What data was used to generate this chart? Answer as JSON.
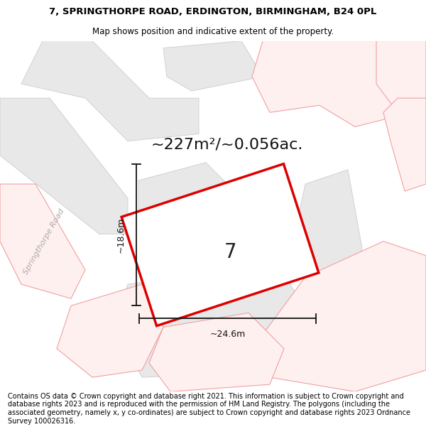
{
  "title_line1": "7, SPRINGTHORPE ROAD, ERDINGTON, BIRMINGHAM, B24 0PL",
  "title_line2": "Map shows position and indicative extent of the property.",
  "area_text": "~227m²/~0.056ac.",
  "property_number": "7",
  "dim_height": "~18.6m",
  "dim_width": "~24.6m",
  "road_label": "Springthorpe Road",
  "footer_text": "Contains OS data © Crown copyright and database right 2021. This information is subject to Crown copyright and database rights 2023 and is reproduced with the permission of HM Land Registry. The polygons (including the associated geometry, namely x, y co-ordinates) are subject to Crown copyright and database rights 2023 Ordnance Survey 100026316.",
  "map_bg": "#ffffff",
  "property_fill": "#ffffff",
  "property_edge": "#dd0000",
  "gray_fill": "#e8e8e8",
  "gray_edge": "#cccccc",
  "pink_edge": "#f0a0a0",
  "pink_fill": "#fff0f0",
  "road_fill": "#f5f5f5",
  "title_fontsize": 9.5,
  "subtitle_fontsize": 8.5,
  "area_fontsize": 16,
  "footer_fontsize": 7.0,
  "road_label_color": "#aaaaaa",
  "dim_color": "#111111"
}
